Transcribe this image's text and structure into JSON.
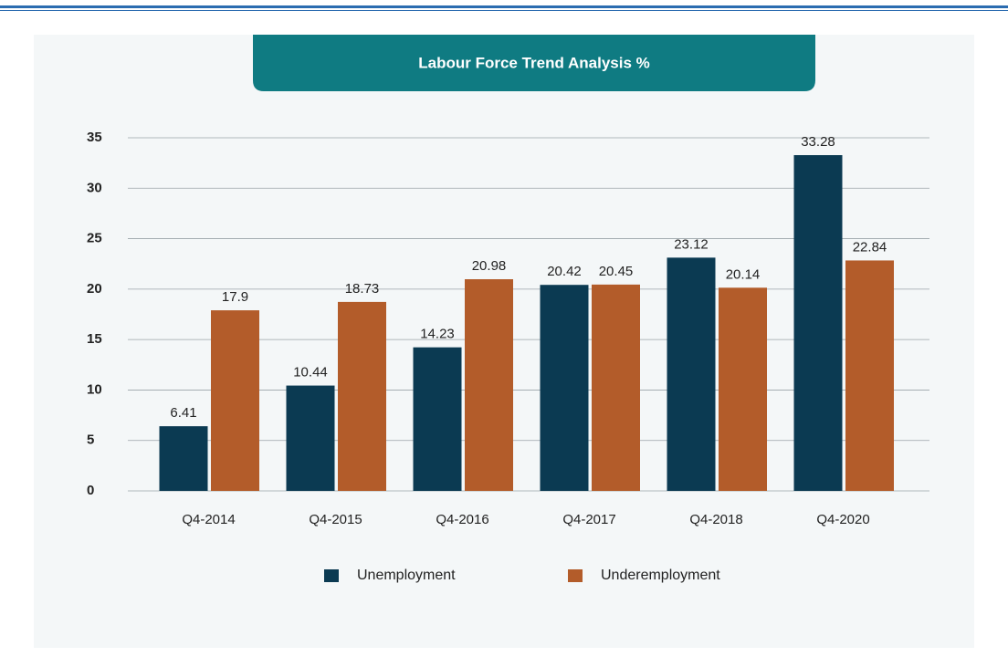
{
  "chart_data": {
    "type": "bar",
    "title": "Labour Force Trend Analysis  %",
    "categories": [
      "Q4-2014",
      "Q4-2015",
      "Q4-2016",
      "Q4-2017",
      "Q4-2018",
      "Q4-2020"
    ],
    "series": [
      {
        "name": "Unemployment",
        "color": "#0b3a52",
        "values": [
          6.41,
          10.44,
          14.23,
          20.42,
          23.12,
          33.28
        ]
      },
      {
        "name": "Underemployment",
        "color": "#b35c2a",
        "values": [
          17.9,
          18.73,
          20.98,
          20.45,
          20.14,
          22.84
        ]
      }
    ],
    "ylim": [
      0,
      35
    ],
    "yticks": [
      0,
      5,
      10,
      15,
      20,
      25,
      30,
      35
    ],
    "grid": true,
    "legend": "bottom"
  }
}
